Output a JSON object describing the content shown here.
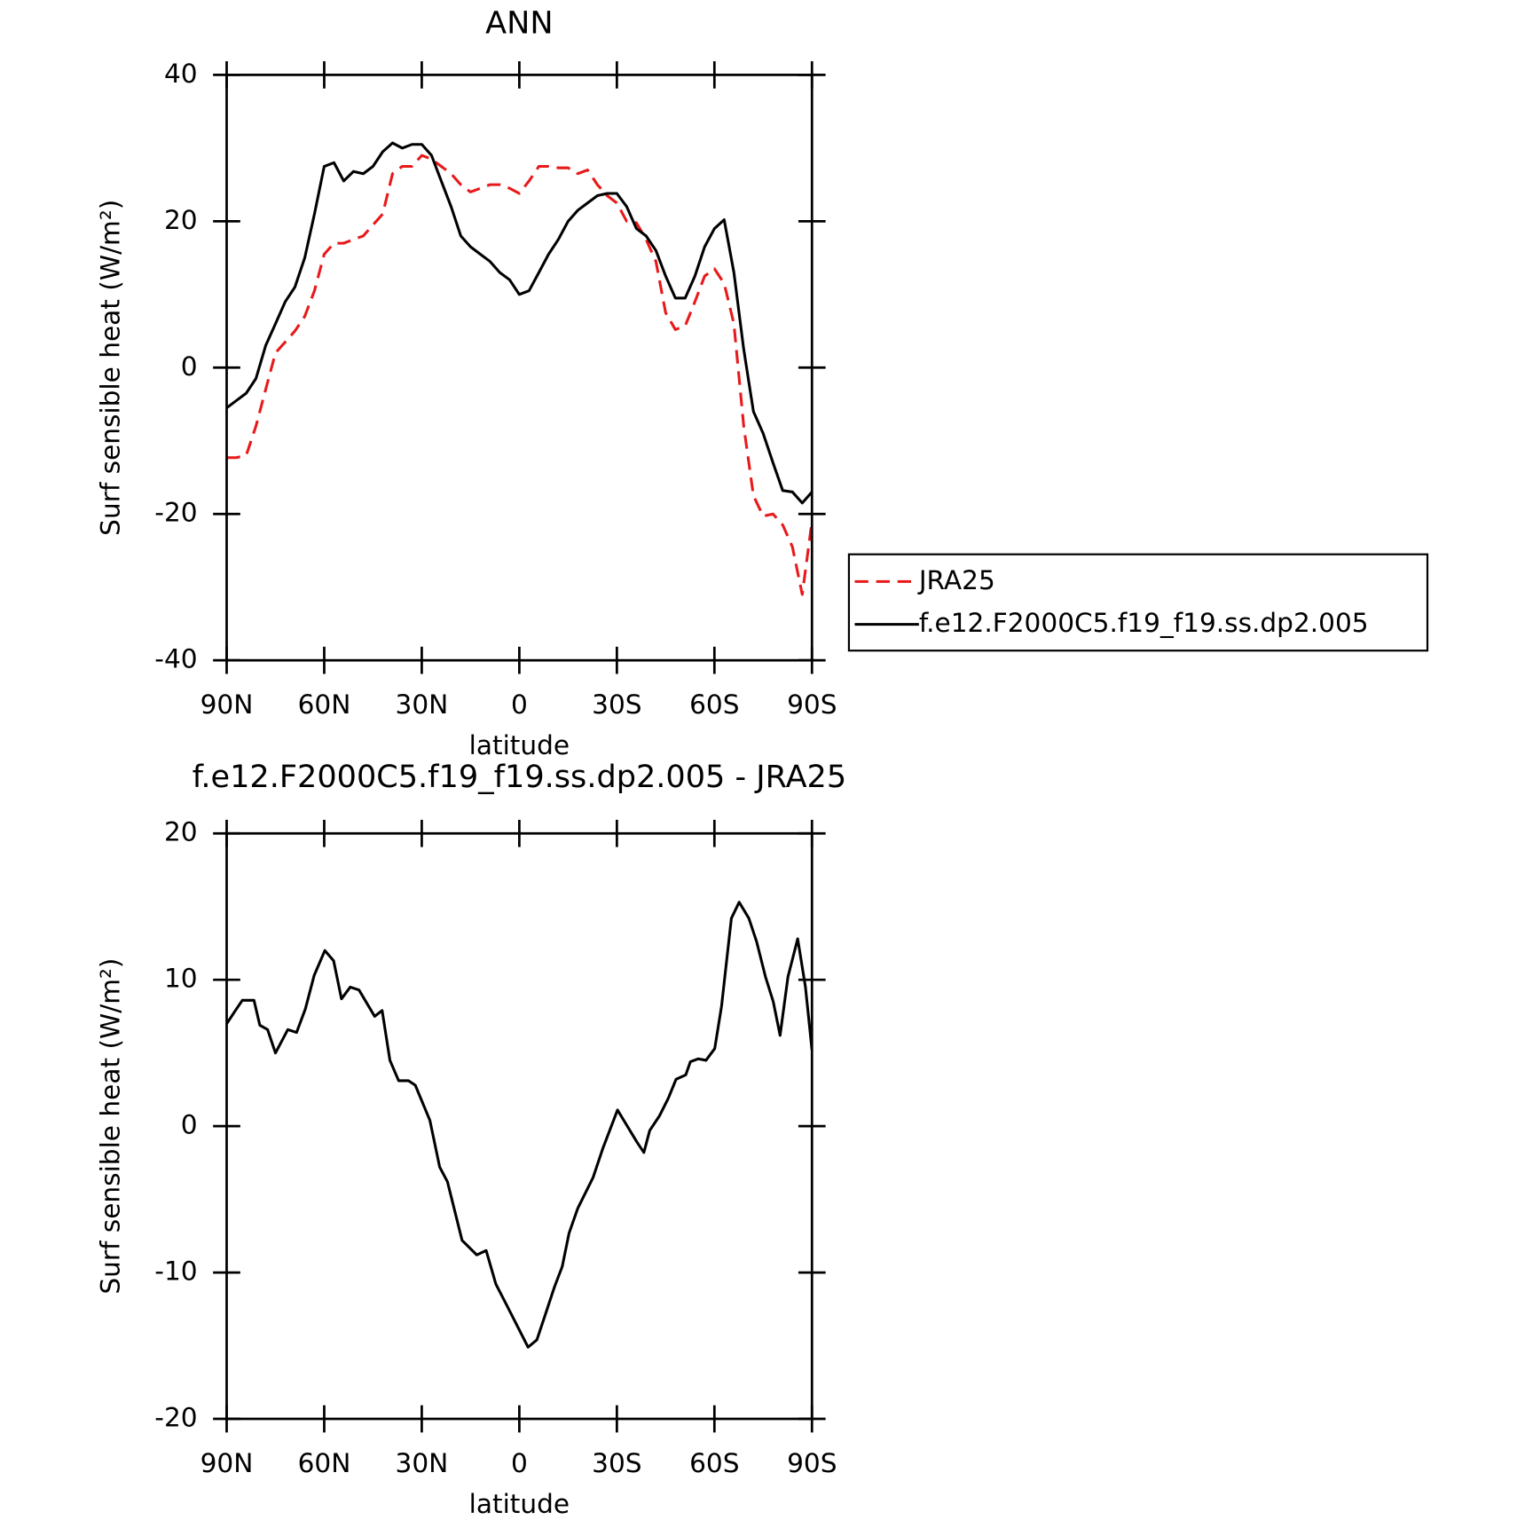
{
  "chart_data": [
    {
      "type": "line",
      "title": "ANN",
      "xlabel": "latitude",
      "ylabel": "Surf sensible heat (W/m²)",
      "xlim": [
        90,
        -90
      ],
      "xticks": [
        {
          "value": 90,
          "label": "90N"
        },
        {
          "value": 60,
          "label": "60N"
        },
        {
          "value": 30,
          "label": "30N"
        },
        0,
        {
          "value": -30,
          "label": "30S"
        },
        {
          "value": -60,
          "label": "60S"
        },
        {
          "value": -90,
          "label": "90S"
        }
      ],
      "ylim": [
        -40,
        40
      ],
      "yticks": [
        -40,
        -20,
        0,
        20,
        40
      ],
      "legend": "right",
      "x": [
        90,
        87,
        84,
        81,
        78,
        75,
        72,
        69,
        66,
        63,
        60,
        57,
        54,
        51,
        48,
        45,
        42,
        39,
        36,
        33,
        30,
        27,
        24,
        21,
        18,
        15,
        12,
        9,
        6,
        3,
        0,
        -3,
        -6,
        -9,
        -12,
        -15,
        -18,
        -21,
        -24,
        -27,
        -30,
        -33,
        -36,
        -39,
        -42,
        -45,
        -48,
        -51,
        -54,
        -57,
        -60,
        -63,
        -66,
        -69,
        -72,
        -75,
        -78,
        -81,
        -84,
        -87,
        -90
      ],
      "series": [
        {
          "name": "JRA25",
          "color": "#e8191a",
          "dash": true,
          "values": [
            -12.3,
            -12.3,
            -12,
            -8,
            -3,
            2,
            3.5,
            5,
            7,
            10.5,
            15.5,
            17,
            17,
            17.5,
            18,
            19.5,
            21,
            26.5,
            27.5,
            27.5,
            29,
            28.5,
            27.5,
            26.5,
            25,
            24,
            24.5,
            25,
            25,
            24.5,
            23.8,
            25.5,
            27.5,
            27.5,
            27.3,
            27.3,
            26.5,
            27,
            25,
            23.5,
            22.5,
            20,
            19.8,
            17.5,
            14.5,
            7.5,
            5.2,
            5.7,
            9,
            12.5,
            13.5,
            11.5,
            6,
            -8,
            -17.5,
            -20.3,
            -20,
            -21.5,
            -24.5,
            -31,
            -21
          ]
        },
        {
          "name": "f.e12.F2000C5.f19_f19.ss.dp2.005",
          "color": "#000000",
          "dash": false,
          "values": [
            -5.5,
            -4.5,
            -3.5,
            -1.5,
            3,
            6,
            9,
            11,
            15,
            21,
            27.5,
            28,
            25.5,
            26.8,
            26.5,
            27.5,
            29.5,
            30.7,
            30,
            30.5,
            30.5,
            29,
            25.5,
            22,
            18,
            16.5,
            15.5,
            14.5,
            13,
            12,
            10,
            10.5,
            13,
            15.5,
            17.5,
            20,
            21.5,
            22.5,
            23.5,
            23.8,
            23.8,
            22,
            19,
            18,
            16,
            12.5,
            9.5,
            9.5,
            12.5,
            16.5,
            19,
            20.2,
            13,
            2.5,
            -6,
            -9,
            -13,
            -16.8,
            -17,
            -18.5,
            -17
          ]
        }
      ]
    },
    {
      "type": "line",
      "title": "f.e12.F2000C5.f19_f19.ss.dp2.005 - JRA25",
      "xlabel": "latitude",
      "ylabel": "Surf sensible heat (W/m²)",
      "xlim": [
        90,
        -90
      ],
      "xticks": [
        {
          "value": 90,
          "label": "90N"
        },
        {
          "value": 60,
          "label": "60N"
        },
        {
          "value": 30,
          "label": "30N"
        },
        0,
        {
          "value": -30,
          "label": "30S"
        },
        {
          "value": -60,
          "label": "60S"
        },
        {
          "value": -90,
          "label": "90S"
        }
      ],
      "ylim": [
        -20,
        20
      ],
      "yticks": [
        -20,
        -10,
        0,
        10,
        20
      ],
      "color": "#000000",
      "x": [
        90,
        87.6,
        85.2,
        81.6,
        79.8,
        77.4,
        75,
        71.2,
        68.5,
        65.8,
        63.1,
        59.8,
        57.1,
        54.7,
        52,
        49.3,
        44.5,
        42.2,
        39.8,
        37.1,
        34.1,
        32,
        27.5,
        24.5,
        22.1,
        17.6,
        13.1,
        10.2,
        7.2,
        4.2,
        1.2,
        -2.7,
        -5.4,
        -7.8,
        -10.8,
        -13.2,
        -15.3,
        -18,
        -22.7,
        -25.7,
        -30.2,
        -36.2,
        -38.3,
        -40.1,
        -43.1,
        -45.8,
        -48.2,
        -51.2,
        -52.6,
        -55,
        -57.4,
        -60.1,
        -62.2,
        -65.2,
        -67.6,
        -70.6,
        -73,
        -75.7,
        -78.1,
        -80.2,
        -82.6,
        -85.6,
        -88,
        -90
      ],
      "values": [
        7,
        7.8,
        8.6,
        8.6,
        6.9,
        6.6,
        5,
        6.6,
        6.4,
        8,
        10.3,
        12,
        11.3,
        8.7,
        9.5,
        9.3,
        7.5,
        7.9,
        4.5,
        3.1,
        3.1,
        2.8,
        0.4,
        -2.8,
        -3.8,
        -7.8,
        -8.8,
        -8.5,
        -10.8,
        -12.1,
        -13.4,
        -15.1,
        -14.6,
        -13,
        -11,
        -9.6,
        -7.3,
        -5.6,
        -3.5,
        -1.5,
        1.1,
        -1.1,
        -1.8,
        -0.3,
        0.7,
        1.9,
        3.2,
        3.5,
        4.4,
        4.6,
        4.5,
        5.3,
        8.2,
        14.2,
        15.3,
        14.2,
        12.6,
        10.2,
        8.5,
        6.2,
        10.2,
        12.8,
        9.5,
        5.2
      ]
    }
  ]
}
